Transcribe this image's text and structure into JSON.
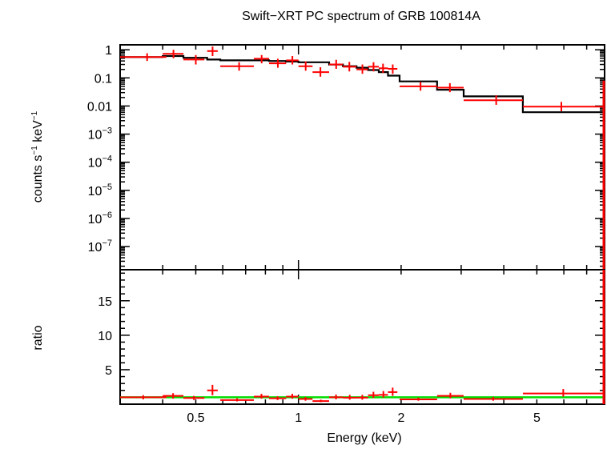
{
  "chart_data": [
    {
      "type": "scatter",
      "title": "Swift−XRT PC spectrum of GRB 100814A",
      "ylabel_main": "counts s",
      "ylabel_exp1": "−1",
      "ylabel_mid": " keV",
      "ylabel_exp2": "−1",
      "xscale": "log",
      "yscale": "log",
      "xlim": [
        0.3,
        7.9
      ],
      "ylim": [
        1.5e-08,
        1.5
      ],
      "yticks": [
        {
          "v": 1,
          "base": "1",
          "exp": ""
        },
        {
          "v": 0.1,
          "base": "0.1",
          "exp": ""
        },
        {
          "v": 0.01,
          "base": "0.01",
          "exp": ""
        },
        {
          "v": 0.001,
          "base": "10",
          "exp": "−3"
        },
        {
          "v": 0.0001,
          "base": "10",
          "exp": "−4"
        },
        {
          "v": 1e-05,
          "base": "10",
          "exp": "−5"
        },
        {
          "v": 1e-06,
          "base": "10",
          "exp": "−6"
        },
        {
          "v": 1e-07,
          "base": "10",
          "exp": "−7"
        }
      ],
      "data_points": [
        {
          "x": 0.36,
          "xlo": 0.3,
          "xhi": 0.41,
          "y": 0.55,
          "ylo": 0.4,
          "yhi": 0.75
        },
        {
          "x": 0.43,
          "xlo": 0.4,
          "xhi": 0.46,
          "y": 0.72,
          "ylo": 0.5,
          "yhi": 1.0
        },
        {
          "x": 0.5,
          "xlo": 0.46,
          "xhi": 0.53,
          "y": 0.45,
          "ylo": 0.3,
          "yhi": 0.65
        },
        {
          "x": 0.56,
          "xlo": 0.54,
          "xhi": 0.58,
          "y": 0.9,
          "ylo": 0.6,
          "yhi": 1.3
        },
        {
          "x": 0.67,
          "xlo": 0.59,
          "xhi": 0.74,
          "y": 0.26,
          "ylo": 0.18,
          "yhi": 0.36
        },
        {
          "x": 0.78,
          "xlo": 0.74,
          "xhi": 0.82,
          "y": 0.48,
          "ylo": 0.33,
          "yhi": 0.65
        },
        {
          "x": 0.87,
          "xlo": 0.82,
          "xhi": 0.92,
          "y": 0.33,
          "ylo": 0.23,
          "yhi": 0.48
        },
        {
          "x": 0.96,
          "xlo": 0.92,
          "xhi": 1.0,
          "y": 0.42,
          "ylo": 0.3,
          "yhi": 0.6
        },
        {
          "x": 1.05,
          "xlo": 1.0,
          "xhi": 1.1,
          "y": 0.26,
          "ylo": 0.18,
          "yhi": 0.38
        },
        {
          "x": 1.16,
          "xlo": 1.1,
          "xhi": 1.23,
          "y": 0.16,
          "ylo": 0.11,
          "yhi": 0.24
        },
        {
          "x": 1.29,
          "xlo": 1.23,
          "xhi": 1.35,
          "y": 0.3,
          "ylo": 0.21,
          "yhi": 0.44
        },
        {
          "x": 1.41,
          "xlo": 1.35,
          "xhi": 1.48,
          "y": 0.25,
          "ylo": 0.17,
          "yhi": 0.37
        },
        {
          "x": 1.54,
          "xlo": 1.48,
          "xhi": 1.6,
          "y": 0.2,
          "ylo": 0.14,
          "yhi": 0.3
        },
        {
          "x": 1.66,
          "xlo": 1.6,
          "xhi": 1.72,
          "y": 0.25,
          "ylo": 0.17,
          "yhi": 0.36
        },
        {
          "x": 1.77,
          "xlo": 1.72,
          "xhi": 1.83,
          "y": 0.22,
          "ylo": 0.15,
          "yhi": 0.32
        },
        {
          "x": 1.89,
          "xlo": 1.83,
          "xhi": 1.95,
          "y": 0.21,
          "ylo": 0.14,
          "yhi": 0.3
        },
        {
          "x": 2.28,
          "xlo": 1.98,
          "xhi": 2.55,
          "y": 0.05,
          "ylo": 0.035,
          "yhi": 0.072
        },
        {
          "x": 2.78,
          "xlo": 2.55,
          "xhi": 3.05,
          "y": 0.045,
          "ylo": 0.031,
          "yhi": 0.065
        },
        {
          "x": 3.8,
          "xlo": 3.05,
          "xhi": 4.55,
          "y": 0.016,
          "ylo": 0.011,
          "yhi": 0.024
        },
        {
          "x": 5.9,
          "xlo": 4.55,
          "xhi": 7.85,
          "y": 0.0095,
          "ylo": 0.0065,
          "yhi": 0.014
        }
      ],
      "model_steps": [
        {
          "xlo": 0.3,
          "xhi": 0.4,
          "y": 0.55
        },
        {
          "xlo": 0.4,
          "xhi": 0.46,
          "y": 0.6
        },
        {
          "xlo": 0.46,
          "xhi": 0.54,
          "y": 0.52
        },
        {
          "xlo": 0.54,
          "xhi": 0.59,
          "y": 0.45
        },
        {
          "xlo": 0.59,
          "xhi": 0.74,
          "y": 0.42
        },
        {
          "xlo": 0.74,
          "xhi": 0.82,
          "y": 0.42
        },
        {
          "xlo": 0.82,
          "xhi": 0.92,
          "y": 0.4
        },
        {
          "xlo": 0.92,
          "xhi": 1.0,
          "y": 0.38
        },
        {
          "xlo": 1.0,
          "xhi": 1.23,
          "y": 0.36
        },
        {
          "xlo": 1.23,
          "xhi": 1.35,
          "y": 0.3
        },
        {
          "xlo": 1.35,
          "xhi": 1.48,
          "y": 0.26
        },
        {
          "xlo": 1.48,
          "xhi": 1.6,
          "y": 0.23
        },
        {
          "xlo": 1.6,
          "xhi": 1.72,
          "y": 0.19
        },
        {
          "xlo": 1.72,
          "xhi": 1.83,
          "y": 0.16
        },
        {
          "xlo": 1.83,
          "xhi": 1.98,
          "y": 0.12
        },
        {
          "xlo": 1.98,
          "xhi": 2.55,
          "y": 0.075
        },
        {
          "xlo": 2.55,
          "xhi": 3.05,
          "y": 0.038
        },
        {
          "xlo": 3.05,
          "xhi": 4.55,
          "y": 0.022
        },
        {
          "xlo": 4.55,
          "xhi": 7.85,
          "y": 0.006
        }
      ],
      "colors": {
        "data": "#ff0000",
        "model": "#000000"
      }
    },
    {
      "type": "scatter",
      "ylabel": "ratio",
      "xlabel": "Energy (keV)",
      "xscale": "log",
      "yscale": "linear",
      "xlim": [
        0.3,
        7.9
      ],
      "ylim": [
        0,
        19.5
      ],
      "yticks": [
        5,
        10,
        15
      ],
      "xticks": [
        {
          "v": 0.5,
          "label": "0.5"
        },
        {
          "v": 1,
          "label": "1"
        },
        {
          "v": 2,
          "label": "2"
        },
        {
          "v": 5,
          "label": "5"
        }
      ],
      "reference_line_y": 1,
      "ratio_points": [
        {
          "xlo": 0.3,
          "xhi": 0.41,
          "y": 1.0,
          "ylo": 0.7,
          "yhi": 1.3
        },
        {
          "xlo": 0.4,
          "xhi": 0.46,
          "y": 1.2,
          "ylo": 0.8,
          "yhi": 1.6
        },
        {
          "xlo": 0.46,
          "xhi": 0.53,
          "y": 0.9,
          "ylo": 0.6,
          "yhi": 1.2
        },
        {
          "xlo": 0.54,
          "xhi": 0.58,
          "y": 2.0,
          "ylo": 1.3,
          "yhi": 2.8
        },
        {
          "xlo": 0.59,
          "xhi": 0.74,
          "y": 0.6,
          "ylo": 0.4,
          "yhi": 0.85
        },
        {
          "xlo": 0.74,
          "xhi": 0.82,
          "y": 1.1,
          "ylo": 0.8,
          "yhi": 1.5
        },
        {
          "xlo": 0.82,
          "xhi": 0.92,
          "y": 0.85,
          "ylo": 0.6,
          "yhi": 1.15
        },
        {
          "xlo": 0.92,
          "xhi": 1.0,
          "y": 1.1,
          "ylo": 0.8,
          "yhi": 1.5
        },
        {
          "xlo": 1.0,
          "xhi": 1.1,
          "y": 0.75,
          "ylo": 0.5,
          "yhi": 1.05
        },
        {
          "xlo": 1.1,
          "xhi": 1.23,
          "y": 0.45,
          "ylo": 0.3,
          "yhi": 0.65
        },
        {
          "xlo": 1.23,
          "xhi": 1.35,
          "y": 1.0,
          "ylo": 0.7,
          "yhi": 1.4
        },
        {
          "xlo": 1.35,
          "xhi": 1.48,
          "y": 0.95,
          "ylo": 0.65,
          "yhi": 1.35
        },
        {
          "xlo": 1.48,
          "xhi": 1.6,
          "y": 0.95,
          "ylo": 0.65,
          "yhi": 1.35
        },
        {
          "xlo": 1.6,
          "xhi": 1.72,
          "y": 1.3,
          "ylo": 0.9,
          "yhi": 1.8
        },
        {
          "xlo": 1.72,
          "xhi": 1.83,
          "y": 1.35,
          "ylo": 0.95,
          "yhi": 1.9
        },
        {
          "xlo": 1.83,
          "xhi": 1.95,
          "y": 1.75,
          "ylo": 1.2,
          "yhi": 2.4
        },
        {
          "xlo": 1.98,
          "xhi": 2.55,
          "y": 0.7,
          "ylo": 0.5,
          "yhi": 0.95
        },
        {
          "xlo": 2.55,
          "xhi": 3.05,
          "y": 1.2,
          "ylo": 0.85,
          "yhi": 1.65
        },
        {
          "xlo": 3.05,
          "xhi": 4.55,
          "y": 0.75,
          "ylo": 0.5,
          "yhi": 1.05
        },
        {
          "xlo": 4.55,
          "xhi": 7.85,
          "y": 1.55,
          "ylo": 1.1,
          "yhi": 2.2
        }
      ],
      "colors": {
        "data": "#ff0000",
        "reference": "#00dd00"
      }
    }
  ]
}
